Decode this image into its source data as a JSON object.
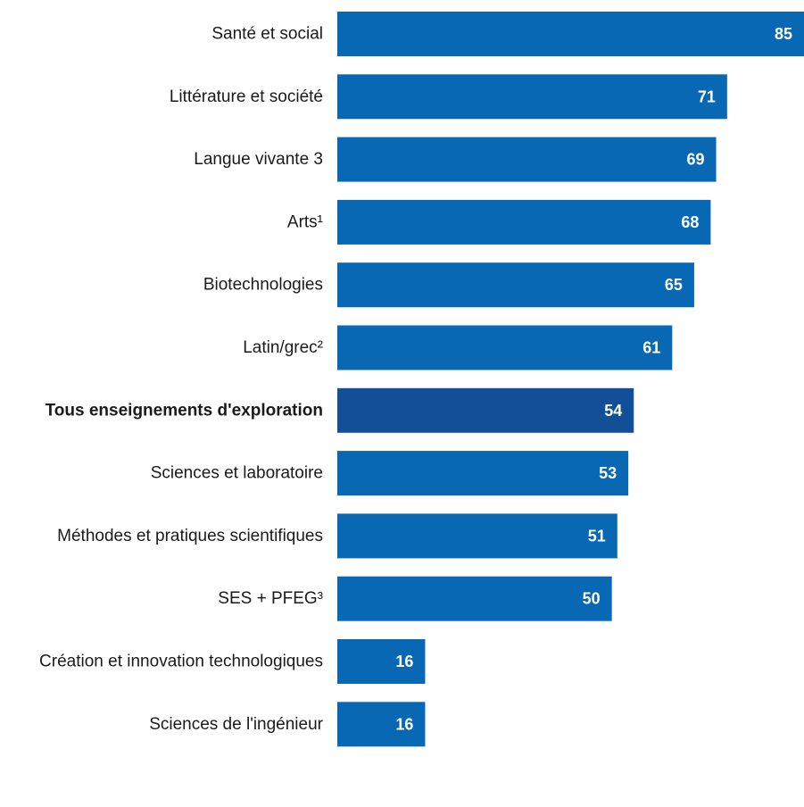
{
  "chart_data": {
    "type": "bar",
    "orientation": "horizontal",
    "categories": [
      "Santé et social",
      "Littérature et société",
      "Langue vivante 3",
      "Arts¹",
      "Biotechnologies",
      "Latin/grec²",
      "Tous enseignements d'exploration",
      "Sciences et laboratoire",
      "Méthodes et pratiques scientifiques",
      "SES + PFEG³",
      "Création et innovation technologiques",
      "Sciences de l'ingénieur"
    ],
    "values": [
      85,
      71,
      69,
      68,
      65,
      61,
      54,
      53,
      51,
      50,
      16,
      16
    ],
    "highlight_index": 6,
    "xlim": [
      0,
      85
    ],
    "grid": false,
    "legend": "none",
    "colors": {
      "bar": "#0868b4",
      "highlight": "#134f96",
      "value_label": "#ffffff",
      "category_label": "#1a1a1a"
    }
  }
}
